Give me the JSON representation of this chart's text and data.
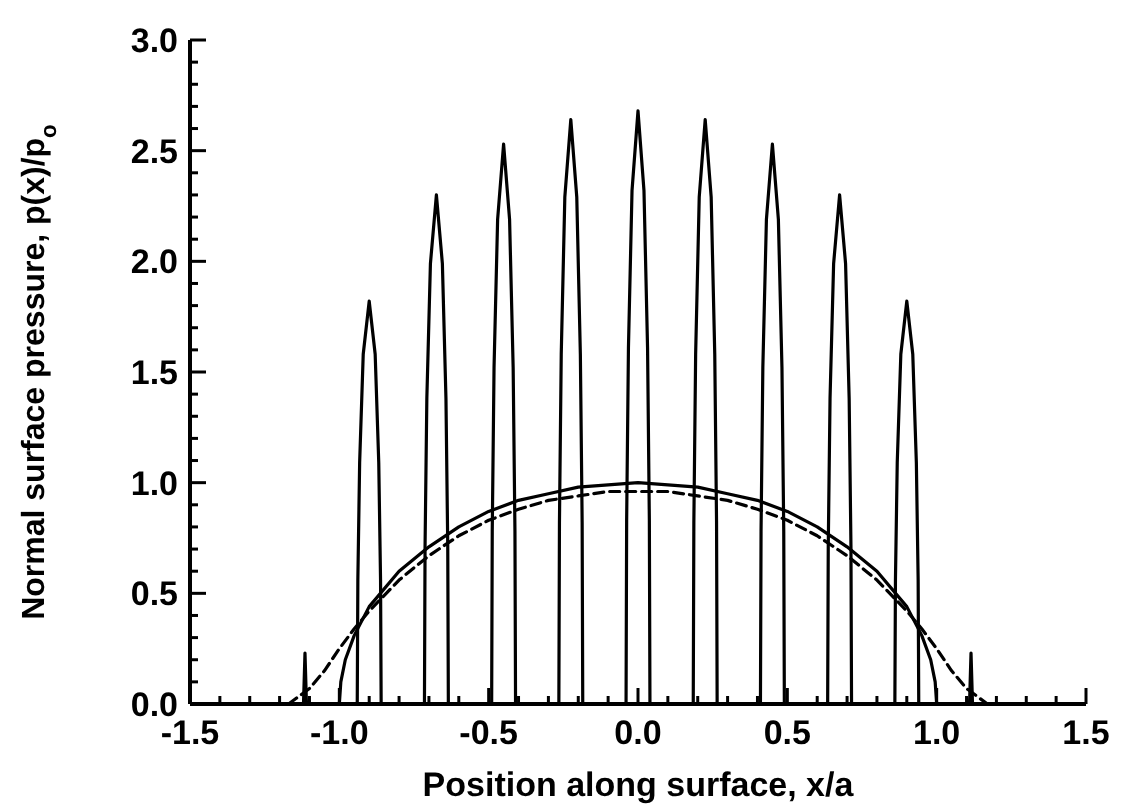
{
  "chart_data": {
    "type": "line",
    "xlabel": "Position along surface, x/a",
    "ylabel": "Normal surface pressure, p(x)/p$_{o}$",
    "xlim": [
      -1.5,
      1.5
    ],
    "ylim": [
      0,
      3.0
    ],
    "xticks": [
      {
        "value": -1.5,
        "label": "-1.5"
      },
      {
        "value": -1.4,
        "label": null
      },
      {
        "value": -1.3,
        "label": null
      },
      {
        "value": -1.2,
        "label": null
      },
      {
        "value": -1.1,
        "label": null
      },
      {
        "value": -1.0,
        "label": "-1.0"
      },
      {
        "value": -0.9,
        "label": null
      },
      {
        "value": -0.8,
        "label": null
      },
      {
        "value": -0.7,
        "label": null
      },
      {
        "value": -0.6,
        "label": null
      },
      {
        "value": -0.5,
        "label": "-0.5"
      },
      {
        "value": -0.4,
        "label": null
      },
      {
        "value": -0.3,
        "label": null
      },
      {
        "value": -0.2,
        "label": null
      },
      {
        "value": -0.1,
        "label": null
      },
      {
        "value": 0,
        "label": "0.0"
      },
      {
        "value": 0.1,
        "label": null
      },
      {
        "value": 0.2,
        "label": null
      },
      {
        "value": 0.3,
        "label": null
      },
      {
        "value": 0.4,
        "label": null
      },
      {
        "value": 0.5,
        "label": "0.5"
      },
      {
        "value": 0.6,
        "label": null
      },
      {
        "value": 0.7,
        "label": null
      },
      {
        "value": 0.8,
        "label": null
      },
      {
        "value": 0.9,
        "label": null
      },
      {
        "value": 1.0,
        "label": "1.0"
      },
      {
        "value": 1.1,
        "label": null
      },
      {
        "value": 1.2,
        "label": null
      },
      {
        "value": 1.3,
        "label": null
      },
      {
        "value": 1.4,
        "label": null
      },
      {
        "value": 1.5,
        "label": "1.5"
      }
    ],
    "yticks": [
      {
        "value": 0,
        "label": "0.0"
      },
      {
        "value": 0.1,
        "label": null
      },
      {
        "value": 0.2,
        "label": null
      },
      {
        "value": 0.3,
        "label": null
      },
      {
        "value": 0.4,
        "label": null
      },
      {
        "value": 0.5,
        "label": "0.5"
      },
      {
        "value": 0.6,
        "label": null
      },
      {
        "value": 0.7,
        "label": null
      },
      {
        "value": 0.8,
        "label": null
      },
      {
        "value": 0.9,
        "label": null
      },
      {
        "value": 1.0,
        "label": "1.0"
      },
      {
        "value": 1.1,
        "label": null
      },
      {
        "value": 1.2,
        "label": null
      },
      {
        "value": 1.3,
        "label": null
      },
      {
        "value": 1.4,
        "label": null
      },
      {
        "value": 1.5,
        "label": "1.5"
      },
      {
        "value": 1.6,
        "label": null
      },
      {
        "value": 1.7,
        "label": null
      },
      {
        "value": 1.8,
        "label": null
      },
      {
        "value": 1.9,
        "label": null
      },
      {
        "value": 2.0,
        "label": "2.0"
      },
      {
        "value": 2.1,
        "label": null
      },
      {
        "value": 2.2,
        "label": null
      },
      {
        "value": 2.3,
        "label": null
      },
      {
        "value": 2.4,
        "label": null
      },
      {
        "value": 2.5,
        "label": "2.5"
      },
      {
        "value": 2.6,
        "label": null
      },
      {
        "value": 2.7,
        "label": null
      },
      {
        "value": 2.8,
        "label": null
      },
      {
        "value": 2.9,
        "label": null
      },
      {
        "value": 3.0,
        "label": "3.0"
      }
    ],
    "grid": false,
    "series": [
      {
        "color": "#000000",
        "line_style": "solid",
        "x": [
          -1.15,
          -1.12,
          -1.115,
          -1.11,
          -0.94,
          -0.938,
          -0.932,
          -0.92,
          -0.9,
          -0.88,
          -0.868,
          -0.862,
          -0.86,
          -0.715,
          -0.713,
          -0.707,
          -0.695,
          -0.675,
          -0.655,
          -0.643,
          -0.637,
          -0.635,
          -0.49,
          -0.488,
          -0.482,
          -0.47,
          -0.45,
          -0.43,
          -0.418,
          -0.412,
          -0.41,
          -0.265,
          -0.263,
          -0.257,
          -0.245,
          -0.225,
          -0.205,
          -0.193,
          -0.187,
          -0.185,
          -0.04,
          -0.038,
          -0.032,
          -0.02,
          0,
          0.02,
          0.032,
          0.038,
          0.04,
          0.185,
          0.187,
          0.193,
          0.205,
          0.225,
          0.245,
          0.257,
          0.263,
          0.265,
          0.41,
          0.412,
          0.418,
          0.43,
          0.45,
          0.47,
          0.482,
          0.488,
          0.49,
          0.635,
          0.637,
          0.643,
          0.655,
          0.675,
          0.695,
          0.707,
          0.713,
          0.715,
          0.86,
          0.862,
          0.868,
          0.88,
          0.9,
          0.92,
          0.932,
          0.938,
          0.94,
          1.11,
          1.115,
          1.12,
          1.15
        ],
        "values": [
          0,
          0,
          0.23,
          0,
          0,
          0.56,
          1.09,
          1.58,
          1.82,
          1.58,
          1.09,
          0.56,
          0,
          0,
          0.71,
          1.38,
          1.99,
          2.3,
          1.99,
          1.38,
          0.71,
          0,
          0,
          0.78,
          1.52,
          2.19,
          2.53,
          2.19,
          1.52,
          0.78,
          0,
          0,
          0.82,
          1.58,
          2.29,
          2.64,
          2.29,
          1.58,
          0.82,
          0,
          0,
          0.83,
          1.61,
          2.32,
          2.68,
          2.32,
          1.61,
          0.83,
          0,
          0,
          0.82,
          1.58,
          2.29,
          2.64,
          2.29,
          1.58,
          0.82,
          0,
          0,
          0.78,
          1.52,
          2.19,
          2.53,
          2.19,
          1.52,
          0.78,
          0,
          0,
          0.71,
          1.38,
          1.99,
          2.3,
          1.99,
          1.38,
          0.71,
          0,
          0,
          0.56,
          1.09,
          1.58,
          1.82,
          1.58,
          1.09,
          0.56,
          0,
          0,
          0.23,
          0,
          0
        ]
      },
      {
        "color": "#000000",
        "line_style": "solid",
        "x": [
          -1.0,
          -0.995,
          -0.98,
          -0.95,
          -0.9,
          -0.8,
          -0.7,
          -0.6,
          -0.5,
          -0.4,
          -0.3,
          -0.2,
          -0.1,
          0,
          0.1,
          0.2,
          0.3,
          0.4,
          0.5,
          0.6,
          0.7,
          0.8,
          0.9,
          0.95,
          0.98,
          0.995,
          1.0
        ],
        "values": [
          0,
          0.1,
          0.2,
          0.31,
          0.44,
          0.6,
          0.71,
          0.8,
          0.87,
          0.92,
          0.95,
          0.98,
          0.99,
          1.0,
          0.99,
          0.98,
          0.95,
          0.92,
          0.87,
          0.8,
          0.71,
          0.6,
          0.44,
          0.31,
          0.2,
          0.1,
          0
        ]
      },
      {
        "color": "#000000",
        "line_style": "dashed",
        "x": [
          -1.17,
          -1.1,
          -1.05,
          -1.0,
          -0.95,
          -0.9,
          -0.8,
          -0.7,
          -0.6,
          -0.5,
          -0.4,
          -0.3,
          -0.2,
          -0.1,
          0,
          0.1,
          0.2,
          0.3,
          0.4,
          0.5,
          0.6,
          0.7,
          0.8,
          0.9,
          0.95,
          1.0,
          1.05,
          1.1,
          1.17
        ],
        "values": [
          0,
          0.07,
          0.15,
          0.25,
          0.34,
          0.42,
          0.56,
          0.67,
          0.76,
          0.83,
          0.88,
          0.92,
          0.94,
          0.96,
          0.96,
          0.96,
          0.94,
          0.92,
          0.88,
          0.83,
          0.76,
          0.67,
          0.56,
          0.42,
          0.34,
          0.25,
          0.15,
          0.07,
          0
        ]
      }
    ]
  }
}
